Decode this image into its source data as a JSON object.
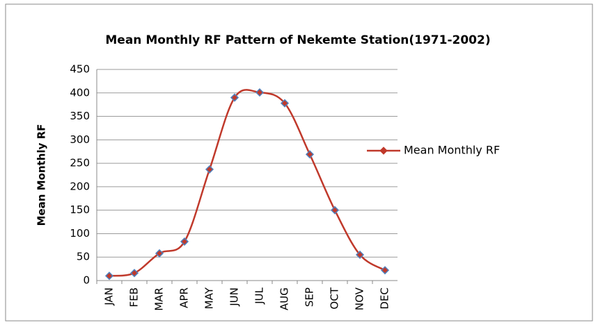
{
  "chart_data": {
    "type": "line",
    "title": "Mean Monthly RF Pattern of Nekemte Station(1971-2002)",
    "y_label": "Mean Monthly RF",
    "categories": [
      "JAN",
      "FEB",
      "MAR",
      "APR",
      "MAY",
      "JUN",
      "JUL",
      "AUG",
      "SEP",
      "OCT",
      "NOV",
      "DEC"
    ],
    "series": [
      {
        "name": "Mean Monthly RF",
        "color": "#c0392b",
        "marker_edge": "#4f81bd",
        "values": [
          10,
          16,
          58,
          83,
          237,
          390,
          401,
          378,
          269,
          150,
          55,
          22
        ]
      }
    ],
    "ylim": [
      0,
      450
    ],
    "yticks": [
      0,
      50,
      100,
      150,
      200,
      250,
      300,
      350,
      400,
      450
    ],
    "grid": true,
    "legend": "right"
  }
}
